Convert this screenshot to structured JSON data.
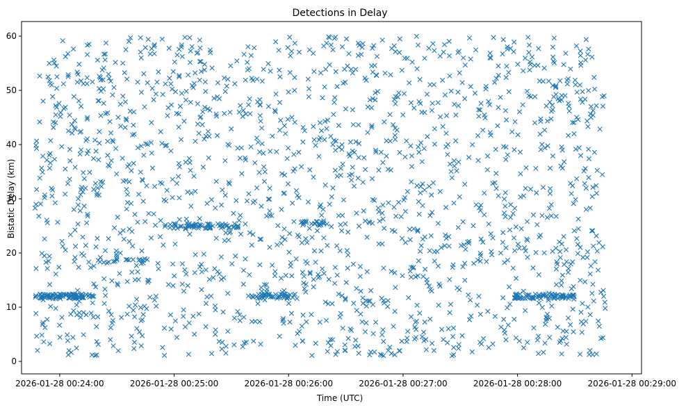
{
  "chart_data": {
    "type": "scatter",
    "title": "Detections in Delay",
    "xlabel": "Time (UTC)",
    "ylabel": "Bistatic Delay (km)",
    "marker": "x",
    "color": "#1f77b4",
    "grid": false,
    "x_ticks": [
      {
        "label": "2026-01-28 00:24:00",
        "seconds": 0
      },
      {
        "label": "2026-01-28 00:25:00",
        "seconds": 60
      },
      {
        "label": "2026-01-28 00:26:00",
        "seconds": 120
      },
      {
        "label": "2026-01-28 00:27:00",
        "seconds": 180
      },
      {
        "label": "2026-01-28 00:28:00",
        "seconds": 240
      },
      {
        "label": "2026-01-28 00:29:00",
        "seconds": 300
      }
    ],
    "y_ticks": [
      0,
      10,
      20,
      30,
      40,
      50,
      60
    ],
    "xlim": [
      "2026-01-28 00:23:40",
      "2026-01-28 00:29:05"
    ],
    "ylim": [
      -2.3,
      62.7
    ],
    "data_time_range": [
      "2026-01-28 00:23:47",
      "2026-01-28 00:28:46"
    ],
    "data_delay_range": [
      1,
      60
    ],
    "point_count": 2000,
    "point_density": "uniform noise across 1–60 km, with dense clusters along about 12 km and 25 km"
  }
}
